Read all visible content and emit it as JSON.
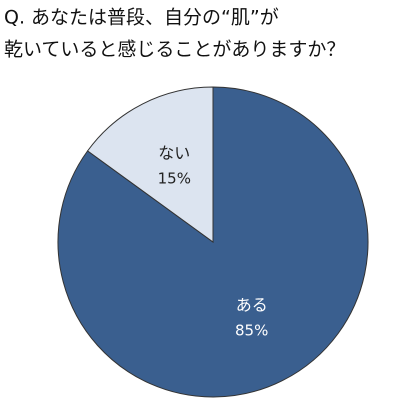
{
  "chart_data": {
    "type": "pie",
    "title": [
      "Q. あなたは普段、自分の“肌”が",
      "乾いていると感じることがありますか？"
    ],
    "categories": [
      "ある",
      "ない"
    ],
    "values": [
      85,
      15
    ],
    "value_labels": [
      "85%",
      "15%"
    ],
    "colors": [
      "#3a5f8f",
      "#dce4f0"
    ],
    "label_colors": [
      "#ffffff",
      "#222222"
    ]
  }
}
